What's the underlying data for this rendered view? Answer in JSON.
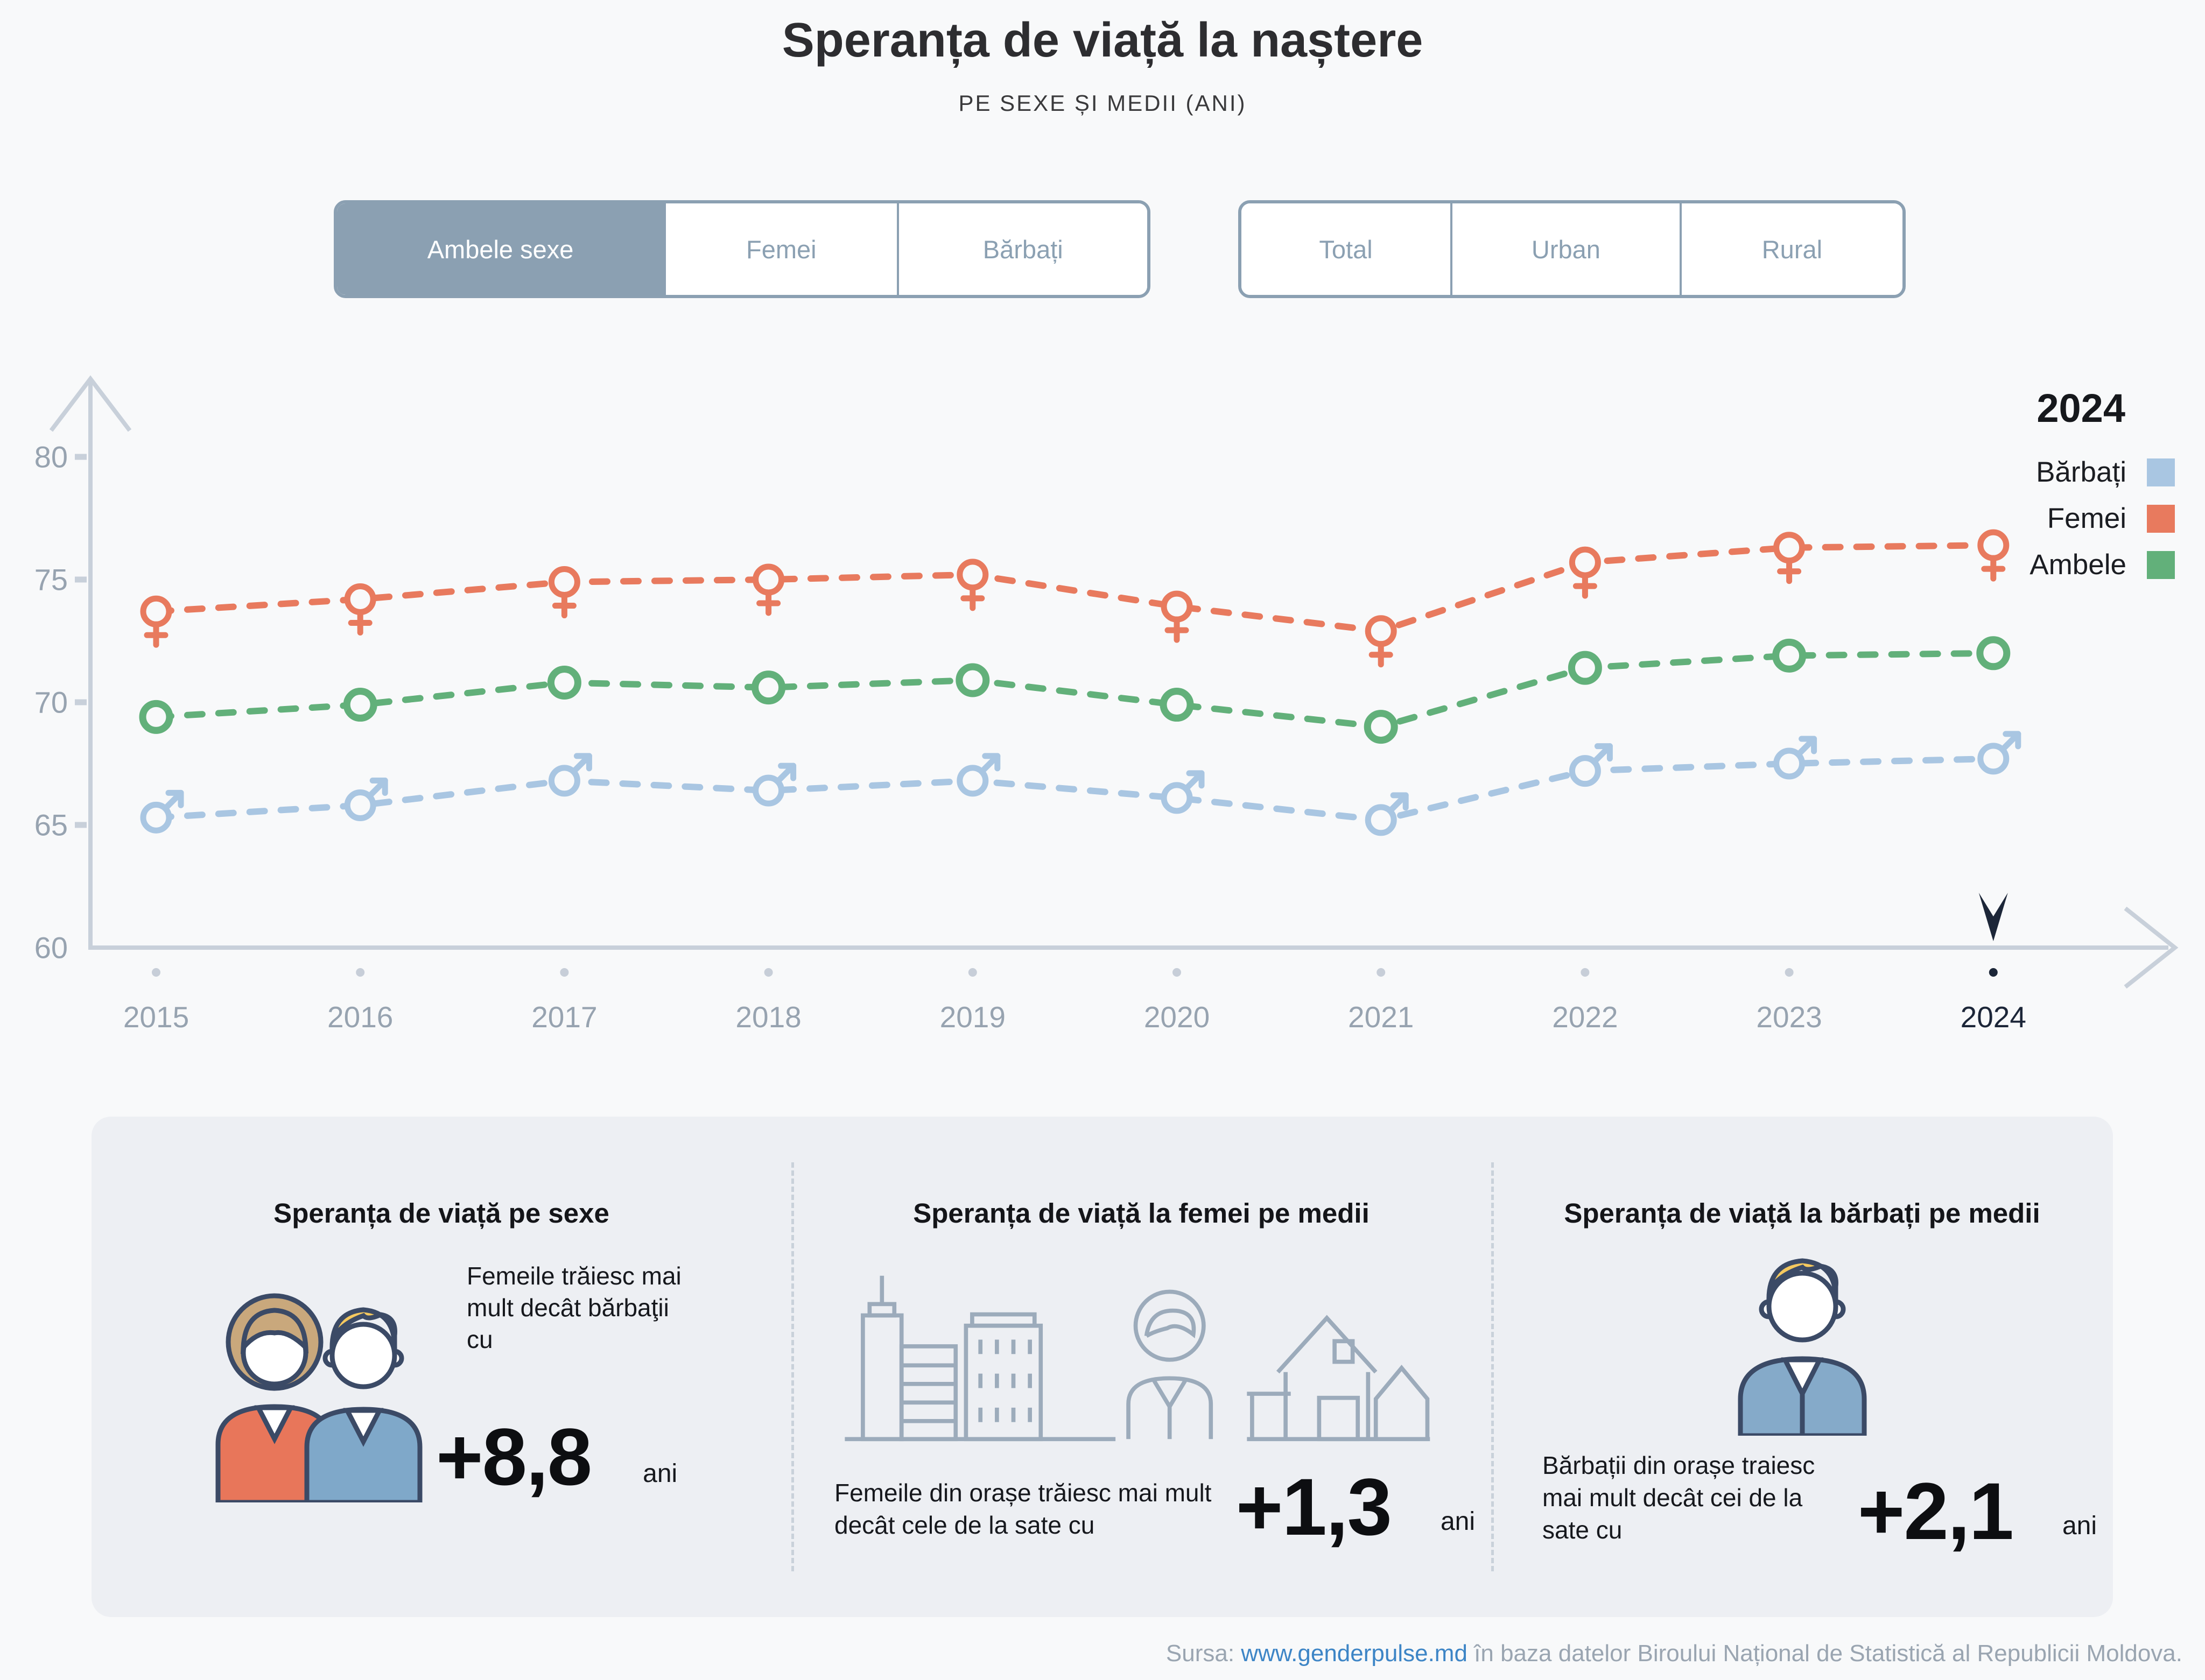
{
  "header": {
    "title": "Speranța de viață la naștere",
    "subtitle": "PE SEXE ȘI MEDII (ANI)"
  },
  "controls": {
    "sex": {
      "options": [
        "Ambele sexe",
        "Femei",
        "Bărbați"
      ],
      "selected": "Ambele sexe"
    },
    "area": {
      "options": [
        "Total",
        "Urban",
        "Rural"
      ]
    }
  },
  "legend": {
    "year": "2024",
    "items": [
      {
        "label": "Bărbați",
        "color": "#a9c6e2"
      },
      {
        "label": "Femei",
        "color": "#e87a5e"
      },
      {
        "label": "Ambele",
        "color": "#62b07a"
      }
    ]
  },
  "chart_data": {
    "type": "line",
    "title": "Speranța de viață la naștere",
    "xlabel": "",
    "ylabel": "ani",
    "x": [
      2015,
      2016,
      2017,
      2018,
      2019,
      2020,
      2021,
      2022,
      2023,
      2024
    ],
    "series": [
      {
        "name": "Femei",
        "color": "#e87a5e",
        "marker": "female",
        "values": [
          73.7,
          74.2,
          74.9,
          75.0,
          75.2,
          73.9,
          72.9,
          75.7,
          76.3,
          76.4
        ]
      },
      {
        "name": "Ambele",
        "color": "#62b07a",
        "marker": "circle",
        "values": [
          69.4,
          69.9,
          70.8,
          70.6,
          70.9,
          69.9,
          69.0,
          71.4,
          71.9,
          72.0
        ]
      },
      {
        "name": "Bărbați",
        "color": "#a9c6e2",
        "marker": "male",
        "values": [
          65.3,
          65.8,
          66.8,
          66.4,
          66.8,
          66.1,
          65.2,
          67.2,
          67.5,
          67.7
        ]
      }
    ],
    "ylim": [
      60,
      82
    ],
    "yticks": [
      60,
      65,
      70,
      75,
      80
    ],
    "highlight_x": 2024,
    "line_style": "dashed",
    "grid": false,
    "legend_position": "top-right"
  },
  "cards": [
    {
      "title": "Speranța de viață pe sexe",
      "text": "Femeile trăiesc mai mult decât bărbaţii cu",
      "value": "+8,8",
      "unit": "ani"
    },
    {
      "title": "Speranța de viață la femei pe medii",
      "text": "Femeile din orașe trăiesc mai mult decât cele de la sate cu",
      "value": "+1,3",
      "unit": "ani"
    },
    {
      "title": "Speranța de viață la bărbați pe medii",
      "text": "Bărbații din orașe traiesc mai mult decât cei de la sate cu",
      "value": "+2,1",
      "unit": "ani"
    }
  ],
  "footer": {
    "prefix": "Sursa: ",
    "link": "www.genderpulse.md",
    "suffix": " în baza datelor Biroului Național de Statistică al Republicii Moldova."
  }
}
